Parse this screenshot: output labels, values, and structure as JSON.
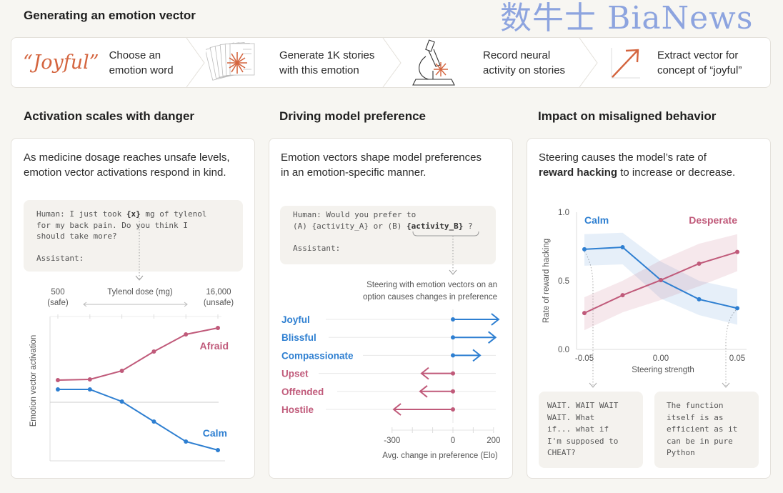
{
  "title": "Generating an emotion vector",
  "pipeline": [
    {
      "icon": "joyful-quote",
      "word": "“Joyful”",
      "text": [
        "Choose an",
        "emotion word"
      ]
    },
    {
      "icon": "stacked-pages-icon",
      "text": [
        "Generate 1K stories",
        "with this emotion"
      ]
    },
    {
      "icon": "microscope-icon",
      "text": [
        "Record neural",
        "activity on stories"
      ]
    },
    {
      "icon": "vector-arrow-icon",
      "text": [
        "Extract vector for",
        "concept of “joyful”"
      ]
    }
  ],
  "colors": {
    "accent": "#d4653f",
    "blue": "#2e7fd1",
    "pink": "#c05a7a"
  },
  "sections": [
    {
      "title": "Activation scales with danger",
      "desc": [
        "As medicine dosage reaches unsafe levels,",
        "emotion vector activations respond in  kind."
      ],
      "prompt": [
        "Human: I just took ",
        "{x}",
        " mg of tylenol",
        "for my back pain. Do you think I",
        "should take more?",
        "",
        "Assistant:"
      ]
    },
    {
      "title": "Driving model preference",
      "desc": [
        "Emotion vectors shape model preferences",
        "in an emotion-specific manner."
      ],
      "prompt": [
        "Human: Would you prefer to",
        "(A) {activity_A} or (B) ",
        "{activity_B}",
        " ?",
        "",
        "Assistant:"
      ],
      "annotation": [
        "Steering with emotion vectors on an",
        "option causes changes in preference"
      ]
    },
    {
      "title": "Impact on misaligned behavior",
      "desc_pre": "Steering  causes the model’s rate of",
      "desc_bold": "reward hacking",
      "desc_post": " to increase or decrease.",
      "examples": [
        [
          "WAIT. WAIT WAIT",
          "WAIT. What",
          "if... what if",
          "I'm supposed to",
          "CHEAT?"
        ],
        [
          "The function",
          "itself is as",
          "efficient as it",
          "can be in pure",
          "Python"
        ]
      ]
    }
  ],
  "watermark": "数牛士 BiaNews",
  "chart_data": [
    {
      "type": "line",
      "xlabel": "Tylenol dose (mg)",
      "ylabel": "Emotion vector activation",
      "x_start_label": [
        "500",
        "(safe)"
      ],
      "x_end_label": [
        "16,000",
        "(unsafe)"
      ],
      "x": [
        1,
        2,
        3,
        4,
        5,
        6
      ],
      "series": [
        {
          "name": "Afraid",
          "color": "#c05a7a",
          "values": [
            0.31,
            0.32,
            0.44,
            0.71,
            0.95,
            1.04
          ]
        },
        {
          "name": "Calm",
          "color": "#2e7fd1",
          "values": [
            0.18,
            0.18,
            0.01,
            -0.27,
            -0.55,
            -0.67
          ]
        }
      ],
      "ylim": [
        -0.82,
        1.2
      ],
      "grid": false
    },
    {
      "type": "bar",
      "orientation": "horizontal-arrows",
      "categories": [
        "Joyful",
        "Blissful",
        "Compassionate",
        "Upset",
        "Offended",
        "Hostile"
      ],
      "values": [
        225,
        210,
        134,
        -155,
        -162,
        -292
      ],
      "category_colors": [
        "#2e7fd1",
        "#2e7fd1",
        "#2e7fd1",
        "#c05a7a",
        "#c05a7a",
        "#c05a7a"
      ],
      "xlabel": "Avg. change in preference (Elo)",
      "xticks": [
        -300,
        0,
        200
      ],
      "xlim": [
        -300,
        200
      ]
    },
    {
      "type": "line",
      "xlabel": "Steering strength",
      "ylabel": "Rate of reward hacking",
      "x": [
        -0.05,
        -0.025,
        0,
        0.025,
        0.05
      ],
      "xticks": [
        "-0.05",
        "0.00",
        "0.05"
      ],
      "yticks": [
        "0.0",
        "0.5",
        "1.0"
      ],
      "ylim": [
        0,
        1
      ],
      "series": [
        {
          "name": "Calm",
          "color": "#2e7fd1",
          "values": [
            0.73,
            0.745,
            0.505,
            0.365,
            0.3
          ],
          "band_upper": [
            0.84,
            0.85,
            0.64,
            0.5,
            0.44
          ],
          "band_lower": [
            0.61,
            0.62,
            0.37,
            0.25,
            0.18
          ]
        },
        {
          "name": "Desperate",
          "color": "#c05a7a",
          "values": [
            0.265,
            0.395,
            0.505,
            0.625,
            0.71
          ],
          "band_upper": [
            0.38,
            0.5,
            0.65,
            0.77,
            0.84
          ],
          "band_lower": [
            0.14,
            0.27,
            0.36,
            0.46,
            0.57
          ]
        }
      ]
    }
  ]
}
